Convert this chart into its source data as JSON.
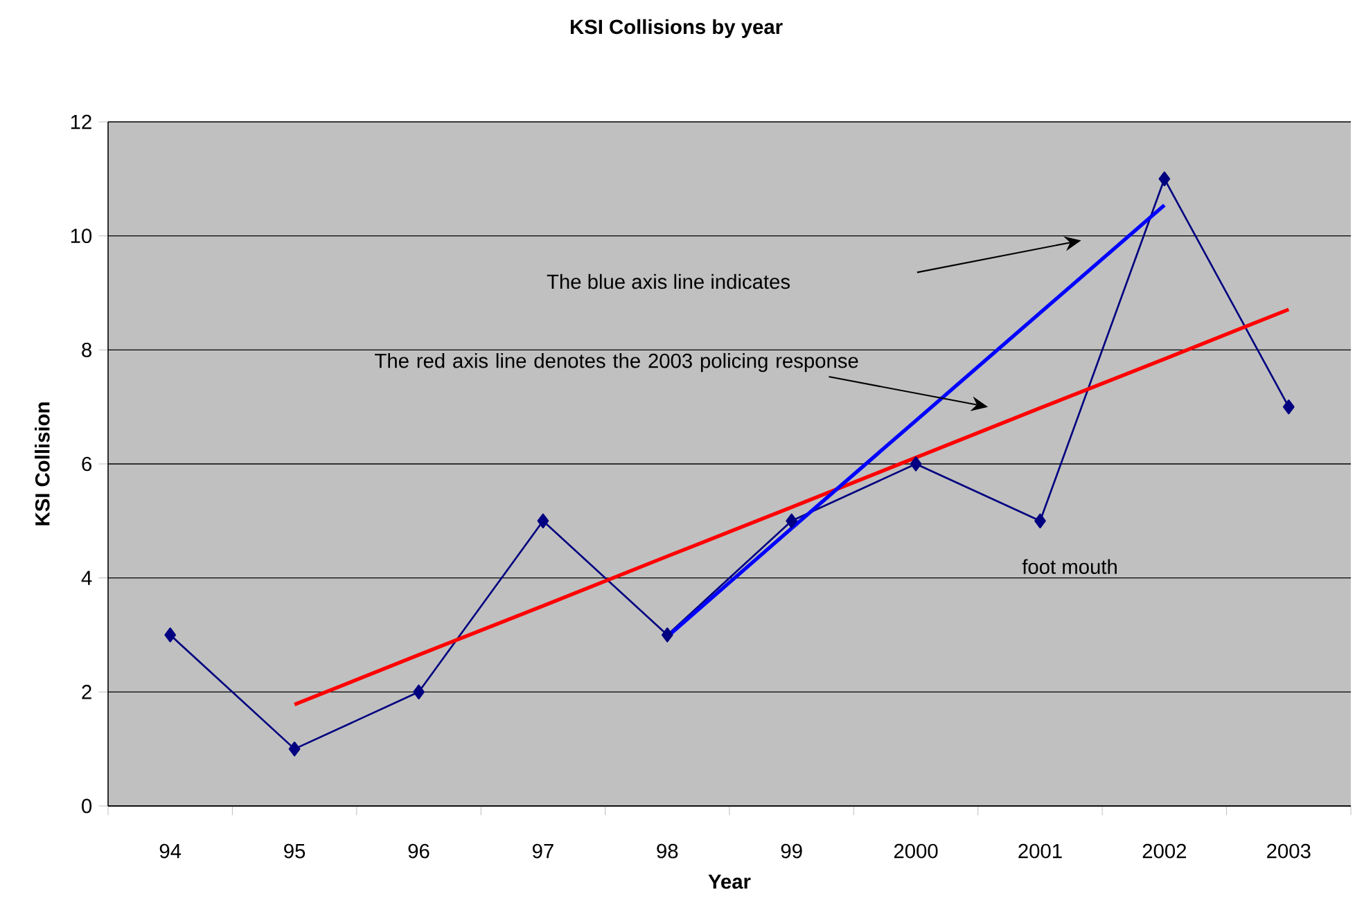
{
  "chart_data": {
    "type": "line",
    "title": "KSI Collisions by year",
    "xlabel": "Year",
    "ylabel": "KSI Collision",
    "categories": [
      "94",
      "95",
      "96",
      "97",
      "98",
      "99",
      "2000",
      "2001",
      "2002",
      "2003"
    ],
    "ylim": [
      0,
      12
    ],
    "yticks": [
      0,
      2,
      4,
      6,
      8,
      10,
      12
    ],
    "grid": "y",
    "marker": "diamond",
    "series": [
      {
        "color": "#000080",
        "values": [
          3,
          1,
          2,
          5,
          3,
          5,
          6,
          5,
          11,
          7
        ]
      },
      {
        "type": "line",
        "marker": "none",
        "values": [
          null,
          1.78,
          2.65,
          3.51,
          4.38,
          5.24,
          6.11,
          6.98,
          7.84,
          8.71
        ],
        "color": "#ff0000"
      },
      {
        "type": "line",
        "marker": "none",
        "values": [
          null,
          null,
          null,
          null,
          2.97,
          4.87,
          6.76,
          8.65,
          10.54,
          null
        ],
        "color": "#0000ff"
      }
    ],
    "annotations": [
      "The blue axis line indicates",
      "The red axis line denotes the 2003  policing response",
      "foot mouth"
    ]
  }
}
